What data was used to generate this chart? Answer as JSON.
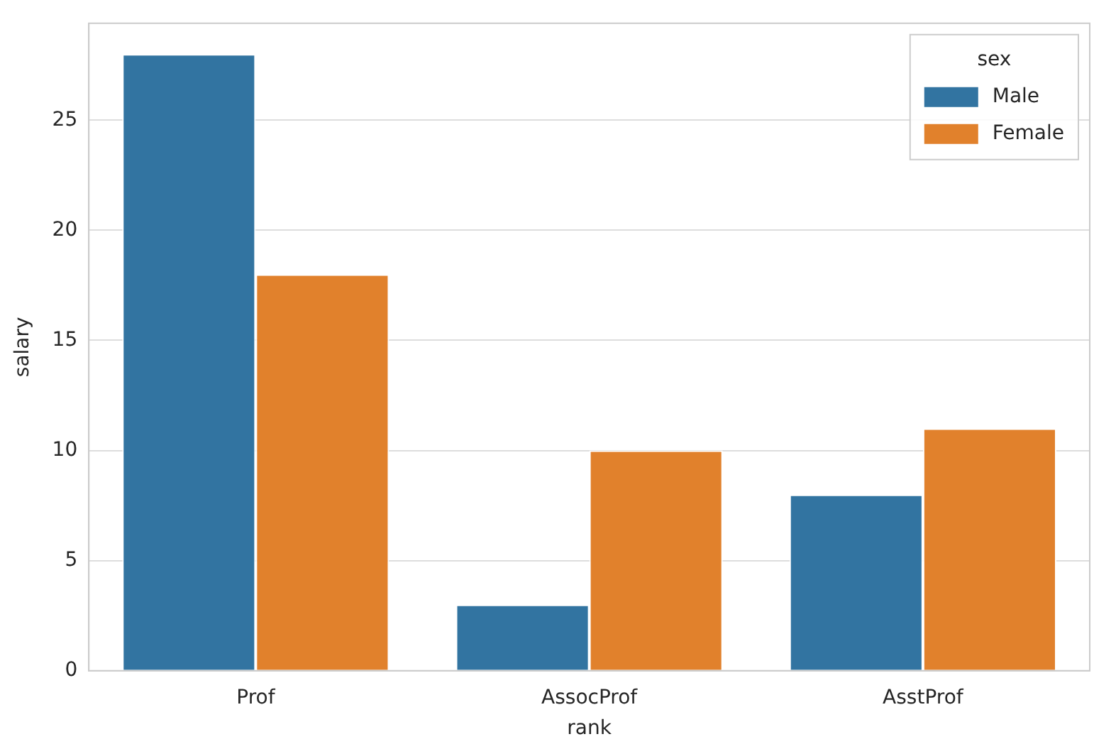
{
  "chart_data": {
    "type": "bar",
    "xlabel": "rank",
    "ylabel": "salary",
    "legend_title": "sex",
    "categories": [
      "Prof",
      "AssocProf",
      "AsstProf"
    ],
    "series": [
      {
        "name": "Male",
        "color": "#3274a1",
        "values": [
          28,
          3,
          8
        ]
      },
      {
        "name": "Female",
        "color": "#e1812c",
        "values": [
          18,
          10,
          11
        ]
      }
    ],
    "ylim": [
      0,
      29.4
    ],
    "yticks": [
      0,
      5,
      10,
      15,
      20,
      25
    ],
    "grid": "y",
    "legend": "top right"
  }
}
